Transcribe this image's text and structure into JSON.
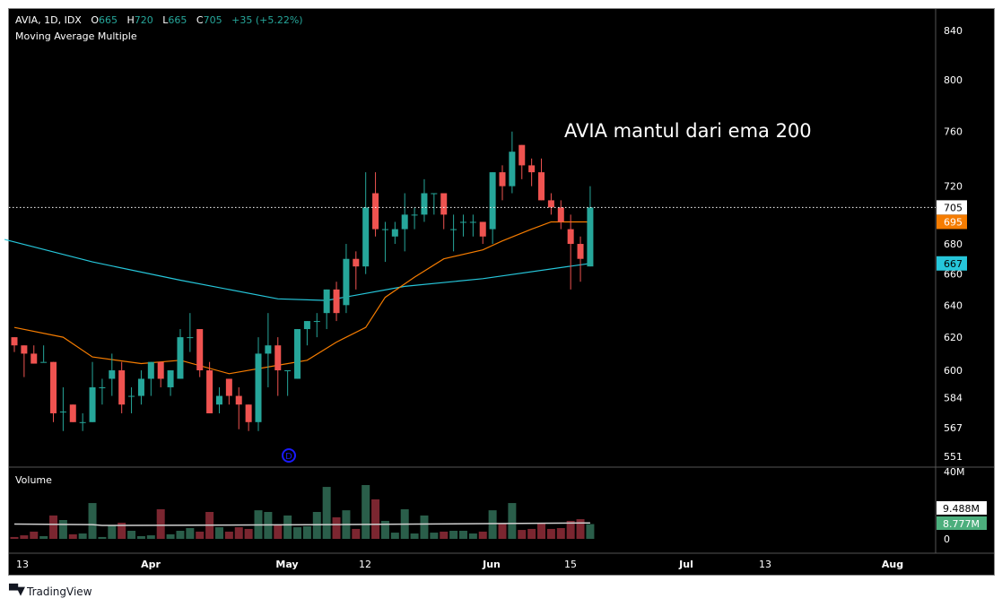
{
  "header": {
    "symbol": "AVIA, 1D, IDX",
    "open_label": "O",
    "open": "665",
    "high_label": "H",
    "high": "720",
    "low_label": "L",
    "low": "665",
    "close_label": "C",
    "close": "705",
    "change": "+35 (+5.22%)",
    "indicator": "Moving Average Multiple"
  },
  "annotation": "AVIA mantul dari ema 200",
  "dividend_marker": "D",
  "volume_pane": {
    "title": "Volume",
    "axis_labels": [
      "40M",
      "0"
    ],
    "ma_value": "9.488M",
    "last_value": "8.777M"
  },
  "price_labels": {
    "last": "705",
    "ma_short": "695",
    "ma_long": "667"
  },
  "colors": {
    "up": "#26a69a",
    "down": "#ef5350",
    "vol_up": "#2a5e4a",
    "vol_down": "#7b2630",
    "ma_short": "#f57c00",
    "ma_long": "#26c6da",
    "vol_ma": "#d0d0d0",
    "marker": "#1a1aff"
  },
  "logo": "TradingView",
  "chart_data": {
    "type": "candlestick",
    "y_scale": "log",
    "ylim": [
      551,
      840
    ],
    "y_ticks": [
      840,
      800,
      760,
      720,
      680,
      660,
      640,
      620,
      600,
      584,
      567,
      551
    ],
    "x_ticks": [
      "13",
      "Apr",
      "May",
      "12",
      "Jun",
      "15",
      "Jul",
      "13",
      "Aug"
    ],
    "ohlc": [
      [
        620,
        620,
        611,
        615
      ],
      [
        615,
        615,
        596,
        610
      ],
      [
        610,
        615,
        604,
        604
      ],
      [
        605,
        615,
        605,
        605
      ],
      [
        605,
        605,
        570,
        575
      ],
      [
        576,
        590,
        565,
        576
      ],
      [
        580,
        580,
        570,
        570
      ],
      [
        570,
        575,
        565,
        570
      ],
      [
        570,
        605,
        570,
        590
      ],
      [
        590,
        595,
        580,
        590
      ],
      [
        595,
        610,
        585,
        600
      ],
      [
        600,
        605,
        575,
        580
      ],
      [
        585,
        590,
        575,
        585
      ],
      [
        585,
        600,
        580,
        595
      ],
      [
        595,
        605,
        585,
        605
      ],
      [
        605,
        605,
        590,
        595
      ],
      [
        590,
        600,
        585,
        600
      ],
      [
        595,
        625,
        595,
        620
      ],
      [
        620,
        635,
        611,
        620
      ],
      [
        625,
        625,
        596,
        600
      ],
      [
        600,
        605,
        575,
        575
      ],
      [
        580,
        590,
        575,
        585
      ],
      [
        595,
        595,
        580,
        585
      ],
      [
        585,
        590,
        566,
        580
      ],
      [
        580,
        580,
        565,
        570
      ],
      [
        570,
        620,
        565,
        610
      ],
      [
        610,
        635,
        590,
        615
      ],
      [
        615,
        620,
        585,
        600
      ],
      [
        600,
        600,
        585,
        600
      ],
      [
        595,
        625,
        595,
        625
      ],
      [
        625,
        630,
        615,
        630
      ],
      [
        630,
        635,
        620,
        630
      ],
      [
        635,
        650,
        625,
        650
      ],
      [
        650,
        655,
        630,
        635
      ],
      [
        640,
        680,
        635,
        670
      ],
      [
        670,
        675,
        650,
        665
      ],
      [
        665,
        730,
        660,
        705
      ],
      [
        715,
        730,
        685,
        690
      ],
      [
        690,
        695,
        668,
        690
      ],
      [
        685,
        695,
        680,
        690
      ],
      [
        690,
        715,
        675,
        700
      ],
      [
        700,
        705,
        690,
        700
      ],
      [
        700,
        725,
        695,
        715
      ],
      [
        715,
        715,
        700,
        715
      ],
      [
        715,
        715,
        690,
        700
      ],
      [
        690,
        700,
        675,
        690
      ],
      [
        695,
        700,
        685,
        695
      ],
      [
        695,
        700,
        685,
        695
      ],
      [
        695,
        695,
        680,
        685
      ],
      [
        690,
        730,
        680,
        730
      ],
      [
        730,
        735,
        710,
        720
      ],
      [
        720,
        760,
        715,
        745
      ],
      [
        750,
        750,
        725,
        735
      ],
      [
        735,
        740,
        720,
        730
      ],
      [
        730,
        740,
        710,
        710
      ],
      [
        710,
        715,
        700,
        705
      ],
      [
        705,
        710,
        690,
        695
      ],
      [
        690,
        700,
        650,
        680
      ],
      [
        680,
        685,
        655,
        670
      ],
      [
        665,
        720,
        665,
        705
      ]
    ],
    "volume_millions": [
      1.1,
      2.1,
      4.3,
      1.6,
      13.9,
      11.2,
      2.7,
      3.2,
      21.3,
      1.1,
      8,
      9.6,
      4.8,
      1.6,
      2.1,
      17.6,
      2.7,
      4.8,
      6.4,
      4.3,
      16,
      6.9,
      4.3,
      6.9,
      5.9,
      17,
      16,
      8.5,
      13.9,
      6.9,
      7.5,
      16,
      30.9,
      12.8,
      17,
      5.9,
      32,
      23.5,
      10.7,
      3.7,
      17.6,
      3.2,
      13.9,
      3.7,
      4.3,
      4.8,
      4.8,
      3.2,
      4.3,
      17,
      9,
      21.3,
      5.3,
      5.9,
      9.6,
      5.9,
      6.4,
      10.7,
      11.7,
      8.777
    ],
    "volume_ylim": [
      0,
      40
    ],
    "ma_short": [
      [
        0,
        626
      ],
      [
        5,
        620
      ],
      [
        8,
        608
      ],
      [
        13,
        604
      ],
      [
        17,
        606
      ],
      [
        22,
        598
      ],
      [
        27,
        603
      ],
      [
        30,
        606
      ],
      [
        33,
        617
      ],
      [
        36,
        626
      ],
      [
        38,
        645
      ],
      [
        41,
        658
      ],
      [
        44,
        670
      ],
      [
        48,
        676
      ],
      [
        50,
        682
      ],
      [
        53,
        690
      ],
      [
        55,
        695
      ],
      [
        57,
        695
      ],
      [
        59,
        695
      ]
    ],
    "ma_long": [
      [
        -1,
        683
      ],
      [
        8,
        668
      ],
      [
        17,
        656
      ],
      [
        27,
        644
      ],
      [
        32,
        643
      ],
      [
        40,
        652
      ],
      [
        48,
        657
      ],
      [
        59,
        667
      ]
    ],
    "volume_ma": [
      [
        0,
        8.8
      ],
      [
        8,
        8.5
      ],
      [
        9,
        8.0
      ],
      [
        30,
        8.4
      ],
      [
        59,
        9.488
      ]
    ]
  }
}
